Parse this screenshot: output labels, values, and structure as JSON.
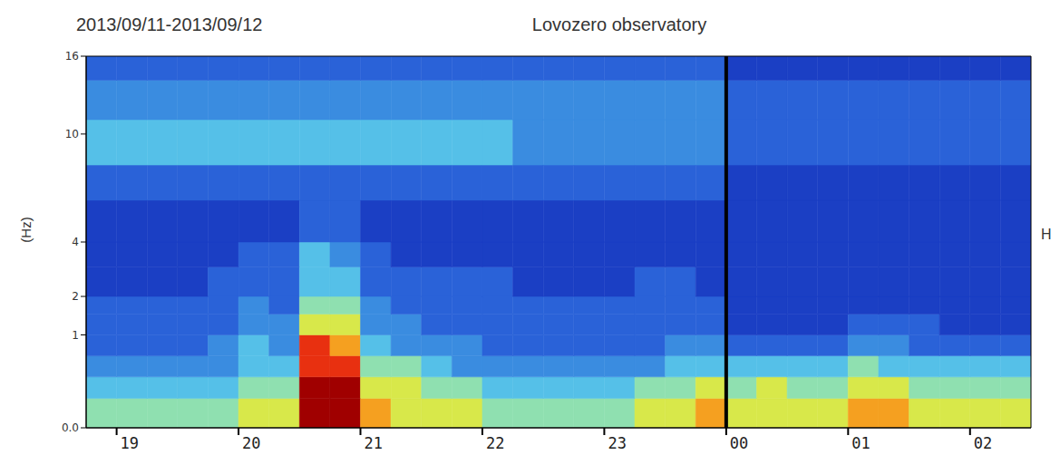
{
  "chart_data": {
    "type": "heatmap",
    "title": "Lovozero observatory",
    "subtitle": "2013/09/11-2013/09/12",
    "y_label": "(Hz)",
    "component_label": "H",
    "x_bins": [
      18.75,
      19,
      19.25,
      19.5,
      19.75,
      20,
      20.25,
      20.5,
      20.75,
      21,
      21.25,
      21.5,
      21.75,
      22,
      22.25,
      22.5,
      22.75,
      23,
      23.25,
      23.5,
      23.75,
      24,
      24.25,
      24.5,
      24.75,
      25,
      25.25,
      25.5,
      25.75,
      26,
      26.25,
      26.5
    ],
    "y_bins": [
      0,
      0.1,
      0.3,
      0.6,
      1,
      1.5,
      2,
      3,
      4,
      6,
      8,
      11,
      14,
      16
    ],
    "cells": [
      [
        5,
        5,
        5,
        5,
        5,
        6,
        6,
        9,
        9,
        7,
        6,
        6,
        6,
        5,
        5,
        5,
        5,
        5,
        6,
        6,
        7,
        6,
        6,
        6,
        6,
        7,
        7,
        6,
        6,
        6,
        6
      ],
      [
        4,
        4,
        4,
        4,
        4,
        5,
        5,
        9,
        9,
        6,
        6,
        5,
        5,
        4,
        4,
        4,
        4,
        4,
        5,
        5,
        6,
        5,
        6,
        5,
        5,
        6,
        6,
        5,
        5,
        5,
        5
      ],
      [
        3,
        3,
        3,
        3,
        3,
        4,
        4,
        8,
        8,
        5,
        5,
        4,
        3,
        3,
        3,
        3,
        3,
        3,
        3,
        4,
        4,
        4,
        4,
        4,
        4,
        5,
        4,
        4,
        4,
        4,
        4
      ],
      [
        2,
        2,
        2,
        2,
        3,
        4,
        3,
        8,
        7,
        4,
        3,
        3,
        3,
        2,
        2,
        2,
        2,
        2,
        2,
        3,
        3,
        2,
        2,
        2,
        2,
        3,
        3,
        2,
        2,
        2,
        2
      ],
      [
        2,
        2,
        2,
        2,
        2,
        3,
        3,
        6,
        6,
        3,
        3,
        2,
        2,
        2,
        2,
        2,
        2,
        2,
        2,
        2,
        2,
        1,
        1,
        1,
        1,
        2,
        2,
        2,
        1,
        1,
        1
      ],
      [
        2,
        2,
        2,
        2,
        2,
        3,
        2,
        5,
        5,
        3,
        2,
        2,
        2,
        2,
        2,
        2,
        2,
        2,
        2,
        2,
        2,
        1,
        1,
        1,
        1,
        1,
        1,
        1,
        1,
        1,
        1
      ],
      [
        1,
        1,
        1,
        1,
        2,
        2,
        2,
        4,
        4,
        2,
        2,
        2,
        2,
        2,
        1,
        1,
        1,
        1,
        2,
        2,
        1,
        1,
        1,
        1,
        1,
        1,
        1,
        1,
        1,
        1,
        1
      ],
      [
        1,
        1,
        1,
        1,
        1,
        2,
        2,
        4,
        3,
        2,
        1,
        1,
        1,
        1,
        1,
        1,
        1,
        1,
        1,
        1,
        1,
        1,
        1,
        1,
        1,
        1,
        1,
        1,
        1,
        1,
        1
      ],
      [
        1,
        1,
        1,
        1,
        1,
        1,
        1,
        2,
        2,
        1,
        1,
        1,
        1,
        1,
        1,
        1,
        1,
        1,
        1,
        1,
        1,
        1,
        1,
        1,
        1,
        1,
        1,
        1,
        1,
        1,
        1
      ],
      [
        2,
        2,
        2,
        2,
        2,
        2,
        2,
        2,
        2,
        2,
        2,
        2,
        2,
        2,
        2,
        2,
        2,
        2,
        2,
        2,
        2,
        1,
        1,
        1,
        1,
        1,
        1,
        1,
        1,
        1,
        1
      ],
      [
        4,
        4,
        4,
        4,
        4,
        4,
        4,
        4,
        4,
        4,
        4,
        4,
        4,
        4,
        3,
        3,
        3,
        3,
        3,
        3,
        3,
        2,
        2,
        2,
        2,
        2,
        2,
        2,
        2,
        2,
        2
      ],
      [
        3,
        3,
        3,
        3,
        3,
        3,
        3,
        3,
        3,
        3,
        3,
        3,
        3,
        3,
        3,
        3,
        3,
        3,
        3,
        3,
        3,
        2,
        2,
        2,
        2,
        2,
        2,
        2,
        2,
        2,
        2
      ],
      [
        2,
        2,
        2,
        2,
        2,
        2,
        2,
        2,
        2,
        2,
        2,
        2,
        2,
        2,
        2,
        2,
        2,
        2,
        2,
        2,
        2,
        1,
        1,
        1,
        1,
        1,
        1,
        1,
        1,
        1,
        1
      ]
    ],
    "colorscale": [
      "#0a1f8f",
      "#1b3fc4",
      "#2a62d8",
      "#3a8ce0",
      "#55c0e8",
      "#8fe0b0",
      "#d8e84a",
      "#f5a020",
      "#e83010",
      "#a00000"
    ],
    "xlim": [
      18.75,
      26.5
    ],
    "xticks": [
      19,
      20,
      21,
      22,
      23,
      {
        "value": 24,
        "label": "00"
      },
      {
        "value": 25,
        "label": "01"
      },
      {
        "value": 26,
        "label": "02"
      }
    ],
    "ylim": [
      0,
      16
    ],
    "yticks": [
      {
        "value": 0,
        "label": "0.0"
      },
      1,
      2,
      4,
      10,
      16
    ],
    "day_boundary": 24
  }
}
